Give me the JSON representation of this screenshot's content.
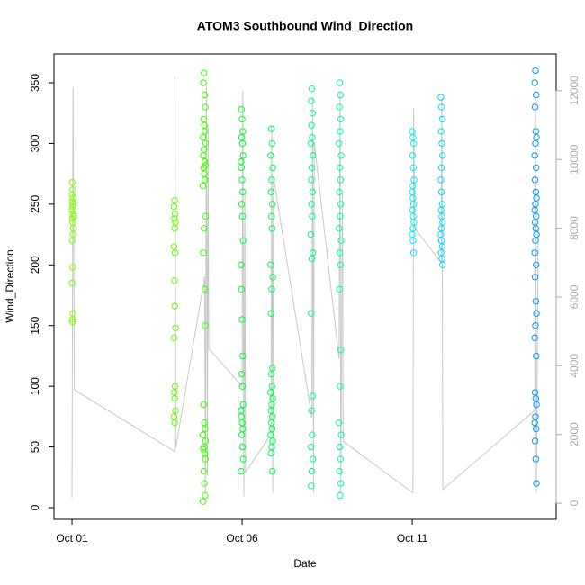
{
  "chart_data": {
    "type": "scatter",
    "title": "ATOM3 Southbound Wind_Direction",
    "xlabel": "Date",
    "ylabel": "Wind_Direction",
    "xlim": [
      -0.53,
      14.23
    ],
    "ylim": [
      -9.6,
      373.7
    ],
    "y2lim": [
      -470,
      13070
    ],
    "xticks": [
      {
        "value": 0,
        "label": "Oct 01"
      },
      {
        "value": 5,
        "label": "Oct 06"
      },
      {
        "value": 10,
        "label": "Oct 11"
      }
    ],
    "yticks": [
      0,
      50,
      100,
      150,
      200,
      250,
      300,
      350
    ],
    "y2ticks": [
      0,
      2000,
      4000,
      6000,
      8000,
      10000,
      12000
    ],
    "y2color": "#aaaaaa",
    "series": [
      {
        "type": "line",
        "axis": "y2",
        "color": "#c8c8c8",
        "x": [
          0,
          0.03,
          0.07,
          3.02,
          3.03,
          3.05,
          3.9,
          3.92,
          3.95,
          3.98,
          4.0,
          4.02,
          5.0,
          5.02,
          5.05,
          5.08,
          5.1,
          5.85,
          5.87,
          5.9,
          5.92,
          7.05,
          7.07,
          7.1,
          7.12,
          7.85,
          7.88,
          7.9,
          7.95,
          7.97,
          10.02,
          10.04,
          10.07,
          10.85,
          10.87,
          10.9,
          13.6,
          13.62,
          13.65,
          13.7
        ],
        "values": [
          150,
          12100,
          3300,
          1500,
          12400,
          1600,
          6600,
          300,
          12200,
          800,
          11000,
          4500,
          3400,
          12000,
          200,
          9000,
          900,
          2000,
          11000,
          300,
          9500,
          2500,
          11800,
          300,
          10500,
          4200,
          12000,
          300,
          9000,
          1800,
          300,
          11500,
          8000,
          7000,
          11800,
          400,
          2700,
          12000,
          300,
          8000
        ]
      },
      {
        "color": "#80ff00",
        "x": [
          0.01,
          0.02,
          0.0,
          0.03,
          0.01,
          0.04,
          0.02,
          0.0,
          0.03,
          0.05,
          0.01,
          0.02,
          0.04,
          0.03,
          0.01,
          0.02,
          0.0,
          0.03,
          0.01,
          0.02
        ],
        "values": [
          268,
          262,
          258,
          255,
          252,
          250,
          248,
          245,
          242,
          240,
          238,
          235,
          230,
          225,
          220,
          198,
          185,
          160,
          155,
          153
        ]
      },
      {
        "color": "#66ff00",
        "x": [
          3.02,
          3.0,
          3.03,
          3.01,
          3.04,
          3.02,
          3.0,
          3.03,
          3.01,
          3.02,
          3.04,
          3.0,
          3.03,
          3.01,
          3.02,
          3.04,
          3.0,
          3.02
        ],
        "values": [
          253,
          248,
          242,
          238,
          235,
          230,
          215,
          210,
          187,
          166,
          148,
          140,
          100,
          95,
          90,
          80,
          75,
          70
        ]
      },
      {
        "color": "#40ff00",
        "x": [
          3.88,
          3.86,
          3.9,
          3.92,
          3.87,
          3.89,
          3.91,
          3.85,
          3.93,
          3.88,
          3.86,
          3.9,
          3.92,
          3.87,
          3.89,
          3.91,
          3.85,
          3.93,
          3.88,
          3.86,
          3.9,
          3.92,
          3.87,
          3.89,
          3.91,
          3.85,
          3.93,
          3.88,
          3.86,
          3.9,
          3.92,
          3.87,
          3.89,
          3.91,
          3.85
        ],
        "values": [
          358,
          350,
          340,
          330,
          320,
          315,
          310,
          305,
          300,
          295,
          290,
          285,
          282,
          280,
          275,
          270,
          265,
          240,
          230,
          210,
          180,
          150,
          85,
          70,
          65,
          60,
          55,
          50,
          48,
          45,
          40,
          30,
          20,
          10,
          5
        ]
      },
      {
        "color": "#00ff33",
        "x": [
          4.98,
          5.0,
          5.02,
          4.99,
          5.01,
          5.03,
          4.97,
          4.98,
          5.0,
          5.02,
          4.99,
          5.01,
          5.03,
          4.97,
          4.98,
          5.0,
          5.02,
          4.99,
          5.01,
          5.03,
          4.97,
          4.98,
          5.0,
          5.02,
          4.99,
          5.01,
          5.03,
          4.97
        ],
        "values": [
          328,
          320,
          310,
          305,
          300,
          290,
          285,
          280,
          270,
          260,
          250,
          240,
          220,
          200,
          180,
          155,
          125,
          110,
          100,
          85,
          80,
          75,
          70,
          65,
          60,
          50,
          40,
          30
        ]
      },
      {
        "color": "#00ff55",
        "x": [
          5.86,
          5.88,
          5.84,
          5.9,
          5.87,
          5.85,
          5.89,
          5.86,
          5.88,
          5.84,
          5.9,
          5.87,
          5.85,
          5.89,
          5.86,
          5.88,
          5.84,
          5.9,
          5.87,
          5.85,
          5.89,
          5.86,
          5.88,
          5.84,
          5.9,
          5.87,
          5.85,
          5.89
        ],
        "values": [
          312,
          300,
          290,
          280,
          270,
          260,
          250,
          240,
          230,
          200,
          190,
          180,
          160,
          115,
          110,
          100,
          95,
          90,
          85,
          80,
          75,
          70,
          65,
          60,
          55,
          50,
          45,
          30
        ]
      },
      {
        "color": "#00ff88",
        "x": [
          7.05,
          7.03,
          7.07,
          7.04,
          7.06,
          7.02,
          7.08,
          7.05,
          7.03,
          7.07,
          7.04,
          7.06,
          7.02,
          7.08,
          7.05,
          7.03,
          7.07,
          7.04,
          7.06,
          7.02,
          7.08,
          7.05,
          7.03
        ],
        "values": [
          345,
          335,
          325,
          315,
          305,
          300,
          290,
          280,
          270,
          260,
          250,
          240,
          225,
          210,
          205,
          160,
          92,
          80,
          60,
          50,
          40,
          30,
          18
        ]
      },
      {
        "color": "#00ffaa",
        "x": [
          7.87,
          7.89,
          7.86,
          7.9,
          7.88,
          7.85,
          7.91,
          7.87,
          7.89,
          7.86,
          7.9,
          7.88,
          7.85,
          7.91,
          7.87,
          7.89,
          7.86,
          7.9,
          7.88,
          7.85,
          7.91,
          7.87,
          7.89,
          7.86,
          7.9,
          7.88
        ],
        "values": [
          350,
          340,
          330,
          320,
          310,
          300,
          290,
          280,
          270,
          260,
          250,
          240,
          230,
          220,
          210,
          200,
          180,
          130,
          100,
          70,
          60,
          50,
          40,
          30,
          20,
          10
        ]
      },
      {
        "color": "#00eeff",
        "x": [
          10.0,
          10.02,
          10.04,
          10.01,
          10.03,
          10.05,
          10.02,
          10.0,
          10.02,
          10.04,
          10.01,
          10.03,
          10.05,
          10.02,
          10.0,
          10.02,
          10.04
        ],
        "values": [
          310,
          305,
          300,
          290,
          280,
          270,
          265,
          260,
          255,
          250,
          245,
          240,
          235,
          230,
          225,
          220,
          210
        ]
      },
      {
        "color": "#00ddff",
        "x": [
          10.84,
          10.86,
          10.88,
          10.85,
          10.87,
          10.89,
          10.86,
          10.84,
          10.86,
          10.88,
          10.85,
          10.87,
          10.89,
          10.86,
          10.84,
          10.86,
          10.88,
          10.85,
          10.87,
          10.89
        ],
        "values": [
          338,
          330,
          320,
          310,
          300,
          290,
          280,
          270,
          260,
          250,
          245,
          240,
          235,
          230,
          225,
          220,
          215,
          210,
          205,
          200
        ]
      },
      {
        "color": "#0099ff",
        "x": [
          13.62,
          13.6,
          13.64,
          13.61,
          13.63,
          13.65,
          13.62,
          13.6,
          13.64,
          13.61,
          13.63,
          13.65,
          13.62,
          13.6,
          13.64,
          13.61,
          13.63,
          13.65,
          13.62,
          13.6,
          13.64,
          13.61,
          13.63,
          13.65,
          13.62,
          13.6,
          13.64,
          13.61,
          13.63,
          13.65,
          13.62,
          13.6,
          13.64,
          13.61,
          13.63,
          13.65
        ],
        "values": [
          360,
          350,
          340,
          330,
          310,
          305,
          300,
          290,
          280,
          270,
          260,
          255,
          250,
          245,
          240,
          235,
          230,
          225,
          220,
          210,
          200,
          190,
          170,
          160,
          150,
          140,
          125,
          95,
          90,
          85,
          75,
          70,
          65,
          55,
          40,
          20
        ]
      }
    ]
  }
}
